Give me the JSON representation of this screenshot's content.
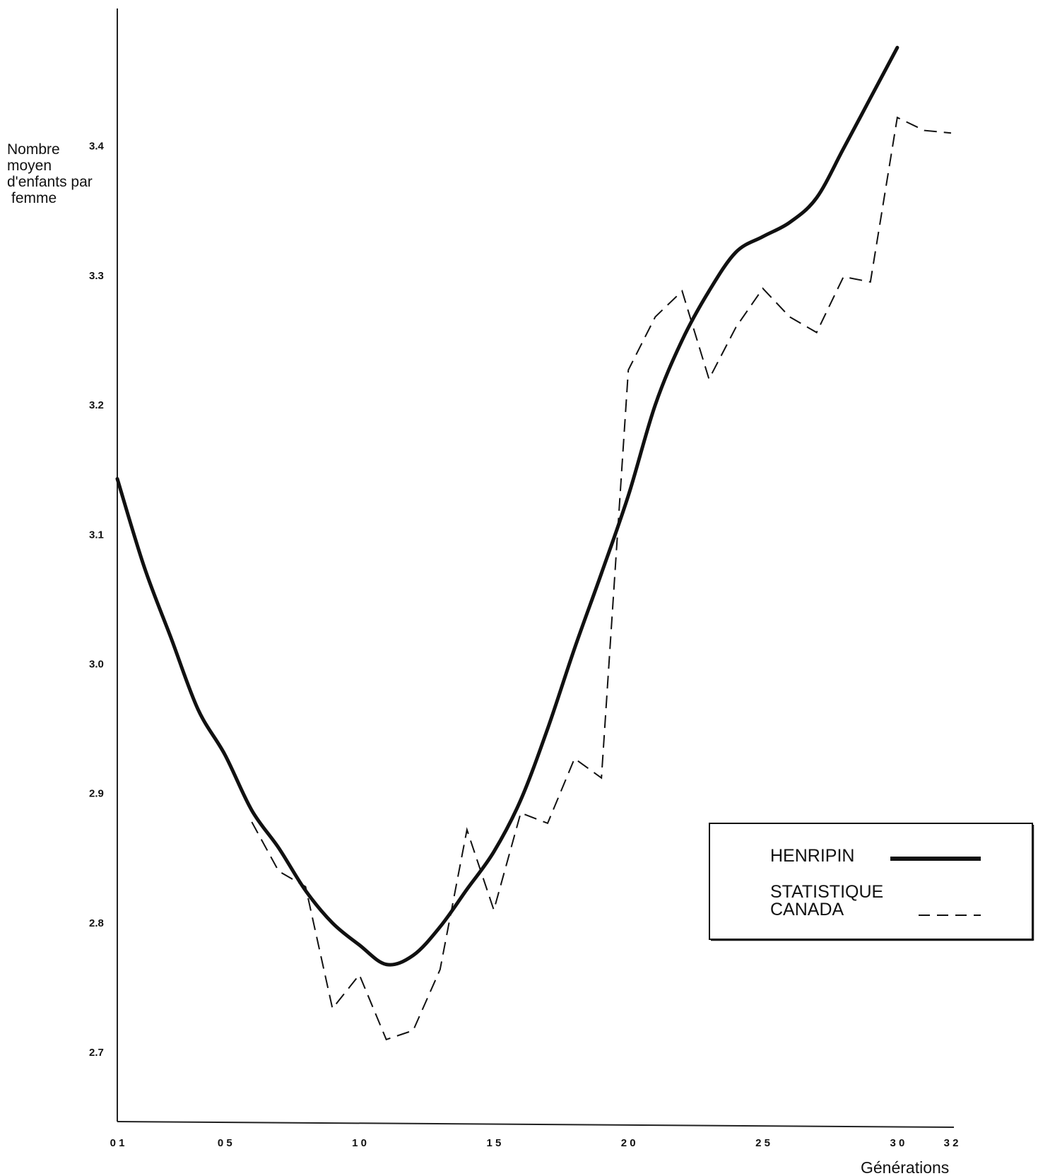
{
  "chart_data": {
    "type": "line",
    "title": "",
    "ylabel_lines": [
      "Nombre",
      "moyen",
      "d'enfants par",
      "femme"
    ],
    "xlabel": "Générations",
    "x_ticks": [
      "01",
      "05",
      "10",
      "15",
      "20",
      "25",
      "30",
      "32"
    ],
    "y_ticks": [
      "2.7",
      "2.8",
      "2.9",
      "3.0",
      "3.1",
      "3.2",
      "3.3",
      "3.4"
    ],
    "xlim": [
      1,
      32
    ],
    "ylim": [
      2.645,
      3.51
    ],
    "grid": false,
    "legend_position": "right",
    "series": [
      {
        "name": "HENRIPIN",
        "style": "solid",
        "x": [
          1,
          2,
          3,
          4,
          5,
          6,
          7,
          8,
          9,
          10,
          11,
          12,
          13,
          14,
          15,
          16,
          17,
          18,
          19,
          20,
          21,
          22,
          23,
          24,
          25,
          26,
          27,
          28,
          29,
          30
        ],
        "values": [
          3.143,
          3.075,
          3.02,
          2.965,
          2.93,
          2.887,
          2.858,
          2.825,
          2.8,
          2.783,
          2.768,
          2.775,
          2.797,
          2.826,
          2.855,
          2.895,
          2.95,
          3.012,
          3.07,
          3.13,
          3.2,
          3.25,
          3.288,
          3.318,
          3.33,
          3.341,
          3.36,
          3.398,
          3.437,
          3.476
        ]
      },
      {
        "name": "STATISTIQUE CANADA",
        "style": "dashed",
        "x": [
          6,
          7,
          8,
          9,
          10,
          11,
          12,
          13,
          14,
          15,
          16,
          17,
          18,
          19,
          20,
          21,
          22,
          23,
          24,
          25,
          26,
          27,
          28,
          29,
          30,
          31,
          32
        ],
        "values": [
          2.878,
          2.84,
          2.828,
          2.734,
          2.76,
          2.71,
          2.717,
          2.764,
          2.872,
          2.81,
          2.885,
          2.877,
          2.927,
          2.912,
          3.227,
          3.268,
          3.288,
          3.22,
          3.26,
          3.29,
          3.268,
          3.256,
          3.299,
          3.295,
          3.422,
          3.412,
          3.41
        ]
      }
    ]
  }
}
